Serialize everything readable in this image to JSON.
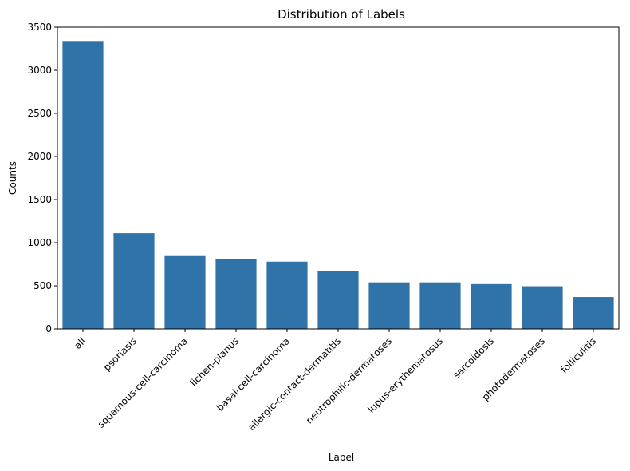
{
  "chart_data": {
    "type": "bar",
    "title": "Distribution of Labels",
    "xlabel": "Label",
    "ylabel": "Counts",
    "categories": [
      "all",
      "psoriasis",
      "squamous-cell-carcinoma",
      "lichen-planus",
      "basal-cell-carcinoma",
      "allergic-contact-dermatitis",
      "neutrophilic-dermatoses",
      "lupus-erythematosus",
      "sarcoidosis",
      "photodermatoses",
      "folliculitis"
    ],
    "values": [
      3340,
      1110,
      845,
      810,
      780,
      675,
      540,
      540,
      520,
      495,
      370
    ],
    "ylim": [
      0,
      3500
    ],
    "yticks": [
      0,
      500,
      1000,
      1500,
      2000,
      2500,
      3000,
      3500
    ],
    "grid": false,
    "bar_color": "#2f73a8"
  }
}
